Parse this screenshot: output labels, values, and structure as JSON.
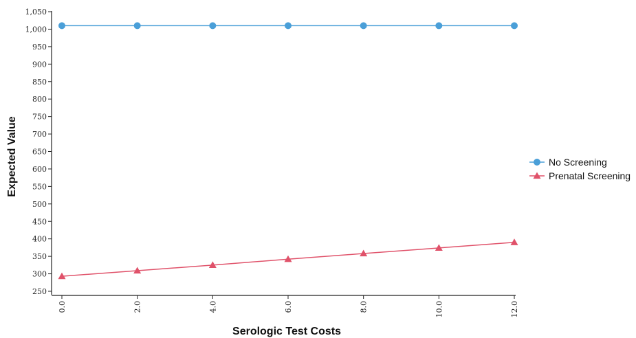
{
  "chart_data": {
    "type": "line",
    "title": "",
    "xlabel": "Serologic Test Costs",
    "ylabel": "Expected Value",
    "x": [
      0,
      2,
      4,
      6,
      8,
      10,
      12
    ],
    "x_tick_labels": [
      "0.0",
      "2.0",
      "4.0",
      "6.0",
      "8.0",
      "10.0",
      "12.0"
    ],
    "y_ticks": [
      250,
      300,
      350,
      400,
      450,
      500,
      550,
      600,
      650,
      700,
      750,
      800,
      850,
      900,
      950,
      1000,
      1050
    ],
    "y_tick_labels": [
      "250",
      "300",
      "350",
      "400",
      "450",
      "500",
      "550",
      "600",
      "650",
      "700",
      "750",
      "800",
      "850",
      "900",
      "950",
      "1,000",
      "1,050"
    ],
    "ylim": [
      250,
      1050
    ],
    "xlim": [
      0,
      12
    ],
    "grid": false,
    "legend_position": "right",
    "series": [
      {
        "name": "No Screening",
        "marker": "circle",
        "color": "#4a9fd8",
        "values": [
          1010,
          1010,
          1010,
          1010,
          1010,
          1010,
          1010
        ]
      },
      {
        "name": "Prenatal Screening",
        "marker": "triangle",
        "color": "#e0526a",
        "values": [
          293,
          309,
          325,
          342,
          358,
          374,
          390
        ]
      }
    ]
  }
}
